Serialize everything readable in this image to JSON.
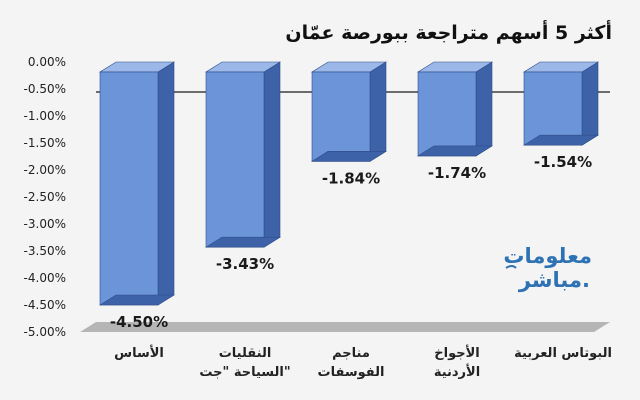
{
  "chart_data": {
    "type": "bar",
    "title": "أكثر 5 أسهم متراجعة ببورصة عمّان",
    "categories": [
      [
        "الأساس"
      ],
      [
        "النقليات",
        "السياحة \"جت\""
      ],
      [
        "مناجم",
        "الفوسفات"
      ],
      [
        "الأجواخ",
        "الأردنية"
      ],
      [
        "البوتاس العربية"
      ]
    ],
    "values": [
      -4.5,
      -3.43,
      -1.84,
      -1.74,
      -1.54
    ],
    "data_labels": [
      "-4.50%",
      "-3.43%",
      "-1.84%",
      "-1.74%",
      "-1.54%"
    ],
    "y_ticks": [
      "0.00%",
      "-0.50%",
      "-1.00%",
      "-1.50%",
      "-2.00%",
      "-2.50%",
      "-3.00%",
      "-3.50%",
      "-4.00%",
      "-4.50%",
      "-5.00%"
    ],
    "ylim": [
      -5.0,
      0.0
    ],
    "grid": false,
    "colors": {
      "bar_front": "#6b95d8",
      "bar_side": "#3e62a8",
      "bar_top": "#9bb8e8",
      "bar_edge": "#2e4d8a",
      "floor": "#b5b5b5",
      "background": "#f4f4f4",
      "brand": "#2f72b4"
    }
  },
  "brand": {
    "name_ar": "معلومات",
    "name_ar_2": "مباشر.",
    "icon": "mubasher-logo"
  }
}
